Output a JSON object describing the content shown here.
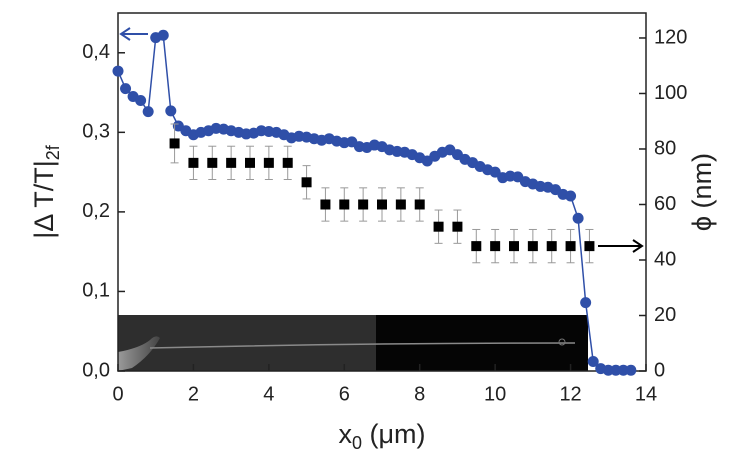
{
  "chart_data": {
    "type": "line",
    "xlim": [
      0,
      14
    ],
    "xticks": [
      0,
      2,
      4,
      6,
      8,
      10,
      12,
      14
    ],
    "ylim": [
      0,
      0.45
    ],
    "yticks": [
      {
        "value": 0,
        "label": "0,0"
      },
      {
        "value": 0.1,
        "label": "0,1"
      },
      {
        "value": 0.2,
        "label": "0,2"
      },
      {
        "value": 0.3,
        "label": "0,3"
      },
      {
        "value": 0.4,
        "label": "0,4"
      }
    ],
    "y2lim": [
      0,
      129
    ],
    "y2ticks": [
      0,
      20,
      40,
      60,
      80,
      100,
      120
    ],
    "x_label": {
      "main": "x",
      "sub": "0",
      "rest": " (μm)"
    },
    "y_label": {
      "main": "|Δ T/T|",
      "sub": "2f"
    },
    "y2_label": "ϕ (nm)",
    "series": [
      {
        "color": "#2f4fa8",
        "marker": "circle",
        "line": true,
        "axis": "y",
        "x": [
          0,
          0.2,
          0.4,
          0.6,
          0.8,
          1.0,
          1.2,
          1.4,
          1.6,
          1.8,
          2.0,
          2.2,
          2.4,
          2.6,
          2.8,
          3.0,
          3.2,
          3.4,
          3.6,
          3.8,
          4.0,
          4.2,
          4.4,
          4.6,
          4.8,
          5.0,
          5.2,
          5.4,
          5.6,
          5.8,
          6.0,
          6.2,
          6.4,
          6.6,
          6.8,
          7.0,
          7.2,
          7.4,
          7.6,
          7.8,
          8.0,
          8.2,
          8.4,
          8.6,
          8.8,
          9.0,
          9.2,
          9.4,
          9.6,
          9.8,
          10.0,
          10.2,
          10.4,
          10.6,
          10.8,
          11.0,
          11.2,
          11.4,
          11.6,
          11.8,
          12.0,
          12.2,
          12.4,
          12.6,
          12.8,
          13.0,
          13.2,
          13.4,
          13.6
        ],
        "values": [
          0.377,
          0.355,
          0.345,
          0.34,
          0.326,
          0.419,
          0.422,
          0.327,
          0.308,
          0.302,
          0.297,
          0.3,
          0.302,
          0.305,
          0.304,
          0.302,
          0.3,
          0.298,
          0.299,
          0.302,
          0.301,
          0.3,
          0.297,
          0.293,
          0.295,
          0.294,
          0.292,
          0.29,
          0.292,
          0.289,
          0.287,
          0.288,
          0.282,
          0.281,
          0.284,
          0.282,
          0.278,
          0.276,
          0.275,
          0.272,
          0.268,
          0.264,
          0.27,
          0.275,
          0.278,
          0.272,
          0.266,
          0.262,
          0.257,
          0.253,
          0.25,
          0.243,
          0.245,
          0.244,
          0.238,
          0.235,
          0.232,
          0.231,
          0.228,
          0.222,
          0.22,
          0.192,
          0.086,
          0.012,
          0.003,
          0.001,
          0.001,
          0.001,
          0.001
        ]
      },
      {
        "color": "#000000",
        "marker": "square",
        "line": false,
        "axis": "y2",
        "error_color": "#999999",
        "x": [
          1.5,
          2.0,
          2.5,
          3.0,
          3.5,
          4.0,
          4.5,
          5.0,
          5.5,
          6.0,
          6.5,
          7.0,
          7.5,
          8.0,
          8.5,
          9.0,
          9.5,
          10.0,
          10.5,
          11.0,
          11.5,
          12.0,
          12.5
        ],
        "values": [
          82,
          75,
          75,
          75,
          75,
          75,
          75,
          68,
          60,
          60,
          60,
          60,
          60,
          60,
          52,
          52,
          45,
          45,
          45,
          45,
          45,
          45,
          45
        ],
        "errors": [
          7,
          6,
          6,
          6,
          6,
          6,
          6,
          6,
          6,
          6,
          6,
          6,
          6,
          6,
          6,
          6,
          6,
          6,
          6,
          6,
          6,
          6,
          6
        ]
      }
    ]
  }
}
